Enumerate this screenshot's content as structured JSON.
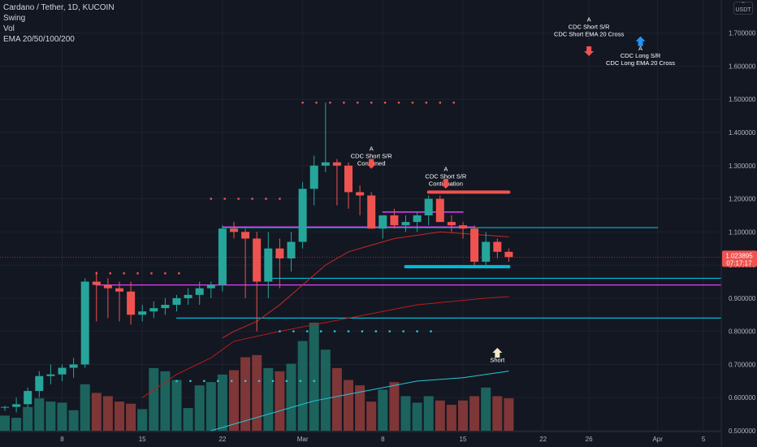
{
  "header": {
    "symbol": "Cardano / Tether, 1D, KUCOIN",
    "indicators": [
      "Swing",
      "Vol",
      "EMA 20/50/100/200"
    ],
    "currency_button": "USDT"
  },
  "price_tag": {
    "value": "1.023895",
    "countdown": "07:17:17"
  },
  "colors": {
    "up": "#26a69a",
    "down": "#ef5350",
    "background": "#131722",
    "cyan_line": "#00bcd4",
    "magenta_line": "#e040fb",
    "ema_slow": "#c62828",
    "ema_mid": "#26c6da"
  },
  "chart_data": {
    "type": "candlestick",
    "ylim": [
      0.5,
      1.79
    ],
    "y_ticks": [
      "0.500000",
      "0.600000",
      "0.700000",
      "0.800000",
      "0.900000",
      "1.000000",
      "1.100000",
      "1.200000",
      "1.300000",
      "1.400000",
      "1.500000",
      "1.600000",
      "1.700000"
    ],
    "x_ticks": [
      {
        "label": "8",
        "i": 5
      },
      {
        "label": "15",
        "i": 12
      },
      {
        "label": "22",
        "i": 19
      },
      {
        "label": "Mar",
        "i": 26
      },
      {
        "label": "8",
        "i": 33
      },
      {
        "label": "15",
        "i": 40
      },
      {
        "label": "22",
        "i": 47
      },
      {
        "label": "26",
        "i": 51
      },
      {
        "label": "Apr",
        "i": 57
      },
      {
        "label": "5",
        "i": 61
      }
    ],
    "candles": [
      [
        0.57,
        0.575,
        0.56,
        0.572
      ],
      [
        0.572,
        0.6,
        0.555,
        0.58
      ],
      [
        0.58,
        0.63,
        0.57,
        0.62
      ],
      [
        0.62,
        0.68,
        0.6,
        0.665
      ],
      [
        0.665,
        0.7,
        0.64,
        0.67
      ],
      [
        0.67,
        0.7,
        0.65,
        0.69
      ],
      [
        0.69,
        0.72,
        0.66,
        0.7
      ],
      [
        0.7,
        0.96,
        0.69,
        0.95
      ],
      [
        0.95,
        0.98,
        0.83,
        0.94
      ],
      [
        0.94,
        0.96,
        0.84,
        0.93
      ],
      [
        0.93,
        0.95,
        0.83,
        0.92
      ],
      [
        0.92,
        0.95,
        0.82,
        0.85
      ],
      [
        0.85,
        0.88,
        0.83,
        0.86
      ],
      [
        0.86,
        0.89,
        0.84,
        0.87
      ],
      [
        0.87,
        0.9,
        0.85,
        0.88
      ],
      [
        0.88,
        0.91,
        0.86,
        0.9
      ],
      [
        0.9,
        0.93,
        0.88,
        0.91
      ],
      [
        0.91,
        0.95,
        0.88,
        0.93
      ],
      [
        0.93,
        0.95,
        0.9,
        0.94
      ],
      [
        0.94,
        1.12,
        0.92,
        1.11
      ],
      [
        1.11,
        1.13,
        1.08,
        1.1
      ],
      [
        1.1,
        1.11,
        0.9,
        1.08
      ],
      [
        1.08,
        1.1,
        0.8,
        0.95
      ],
      [
        0.95,
        1.1,
        0.9,
        1.05
      ],
      [
        1.05,
        1.08,
        0.93,
        1.02
      ],
      [
        1.02,
        1.1,
        0.98,
        1.07
      ],
      [
        1.07,
        1.25,
        1.05,
        1.23
      ],
      [
        1.23,
        1.33,
        1.18,
        1.3
      ],
      [
        1.3,
        1.49,
        1.28,
        1.31
      ],
      [
        1.31,
        1.32,
        1.18,
        1.3
      ],
      [
        1.3,
        1.31,
        1.17,
        1.22
      ],
      [
        1.22,
        1.24,
        1.15,
        1.21
      ],
      [
        1.21,
        1.22,
        1.11,
        1.11
      ],
      [
        1.11,
        1.15,
        1.08,
        1.15
      ],
      [
        1.15,
        1.17,
        1.11,
        1.12
      ],
      [
        1.12,
        1.15,
        1.1,
        1.13
      ],
      [
        1.13,
        1.16,
        1.1,
        1.15
      ],
      [
        1.15,
        1.21,
        1.12,
        1.2
      ],
      [
        1.2,
        1.21,
        1.14,
        1.13
      ],
      [
        1.13,
        1.15,
        1.1,
        1.12
      ],
      [
        1.12,
        1.13,
        1.08,
        1.11
      ],
      [
        1.11,
        1.12,
        1.0,
        1.01
      ],
      [
        1.01,
        1.1,
        1.0,
        1.07
      ],
      [
        1.07,
        1.08,
        1.02,
        1.04
      ],
      [
        1.04,
        1.05,
        1.01,
        1.024
      ]
    ],
    "volumes": [
      0.14,
      0.12,
      0.22,
      0.3,
      0.27,
      0.26,
      0.19,
      0.43,
      0.35,
      0.32,
      0.27,
      0.25,
      0.2,
      0.58,
      0.55,
      0.47,
      0.21,
      0.42,
      0.45,
      0.52,
      0.56,
      0.68,
      0.7,
      0.58,
      0.55,
      0.62,
      0.83,
      1.0,
      0.75,
      0.58,
      0.47,
      0.42,
      0.27,
      0.38,
      0.45,
      0.32,
      0.26,
      0.32,
      0.28,
      0.24,
      0.28,
      0.32,
      0.4,
      0.32,
      0.3
    ],
    "ema_slow": [
      [
        19,
        0.78
      ],
      [
        20,
        0.8
      ],
      [
        22,
        0.83
      ],
      [
        24,
        0.88
      ],
      [
        26,
        0.94
      ],
      [
        28,
        1.0
      ],
      [
        30,
        1.04
      ],
      [
        32,
        1.06
      ],
      [
        34,
        1.08
      ],
      [
        36,
        1.09
      ],
      [
        38,
        1.1
      ],
      [
        40,
        1.095
      ],
      [
        42,
        1.09
      ],
      [
        44,
        1.085
      ]
    ],
    "ema_slow2": [
      [
        12,
        0.6
      ],
      [
        15,
        0.67
      ],
      [
        18,
        0.72
      ],
      [
        20,
        0.77
      ],
      [
        24,
        0.8
      ],
      [
        27,
        0.82
      ],
      [
        30,
        0.84
      ],
      [
        33,
        0.86
      ],
      [
        36,
        0.88
      ],
      [
        39,
        0.89
      ],
      [
        42,
        0.9
      ],
      [
        44,
        0.905
      ]
    ],
    "ema_cyan": [
      [
        18,
        0.5
      ],
      [
        21,
        0.53
      ],
      [
        24,
        0.56
      ],
      [
        27,
        0.59
      ],
      [
        30,
        0.61
      ],
      [
        33,
        0.63
      ],
      [
        36,
        0.65
      ],
      [
        40,
        0.66
      ],
      [
        44,
        0.68
      ]
    ],
    "swing_dots": [
      {
        "from": 26,
        "to": 40,
        "y": 1.49,
        "color": "#ef5350",
        "step": 1.2
      },
      {
        "from": 18,
        "to": 25,
        "y": 1.2,
        "color": "#ef5350",
        "step": 1.2
      },
      {
        "from": 8,
        "to": 16,
        "y": 0.975,
        "color": "#ef5350",
        "step": 1.2
      },
      {
        "from": 24,
        "to": 38,
        "y": 0.8,
        "color": "#26c6da",
        "step": 1.2
      },
      {
        "from": 15,
        "to": 27,
        "y": 0.65,
        "color": "#26c6da",
        "step": 1.2
      }
    ],
    "hlines": [
      {
        "from": 19,
        "to": 57,
        "y": 1.113,
        "color": "#00bcd4",
        "w": 1.2
      },
      {
        "from": 19,
        "to": 41,
        "y": 1.115,
        "color": "#e040fb",
        "w": 1.2
      },
      {
        "from": 33,
        "to": 40,
        "y": 1.16,
        "color": "#e040fb",
        "w": 1.5
      },
      {
        "from": 8,
        "to": 69,
        "y": 0.94,
        "color": "#e040fb",
        "w": 1.2
      },
      {
        "from": 23,
        "to": 69,
        "y": 0.96,
        "color": "#00bcd4",
        "w": 1.2
      },
      {
        "from": 15,
        "to": 69,
        "y": 0.84,
        "color": "#00bcd4",
        "w": 1.2
      },
      {
        "from": 37,
        "to": 44,
        "y": 1.22,
        "color": "#ef5350",
        "w": 4
      },
      {
        "from": 35,
        "to": 44,
        "y": 0.995,
        "color": "#00bcd4",
        "w": 4
      }
    ],
    "annotations": [
      {
        "i": 32,
        "y": 1.345,
        "lines": [
          "A",
          "CDC Short S/R",
          "Confirmed"
        ],
        "arrow": "down-red",
        "arrow_y": 1.32
      },
      {
        "i": 38.5,
        "y": 1.283,
        "lines": [
          "A",
          "CDC Short S/R",
          "Continuation"
        ],
        "arrow": "down-red",
        "arrow_y": 1.26
      },
      {
        "i": 51,
        "y": 1.735,
        "lines": [
          "A",
          "CDC Short S/R",
          "CDC Short EMA 20 Cross"
        ],
        "arrow": "down-red",
        "arrow_y": 1.66
      },
      {
        "i": 55.5,
        "y": 1.648,
        "lines": [
          "A",
          "CDC Long S/R",
          "CDC Long EMA 20 Cross"
        ],
        "arrow": "up-blue",
        "arrow_y": 1.69
      },
      {
        "i": 43,
        "y": 0.707,
        "lines": [
          "Short"
        ],
        "arrow": "up-cream",
        "arrow_y": 0.75
      }
    ]
  }
}
